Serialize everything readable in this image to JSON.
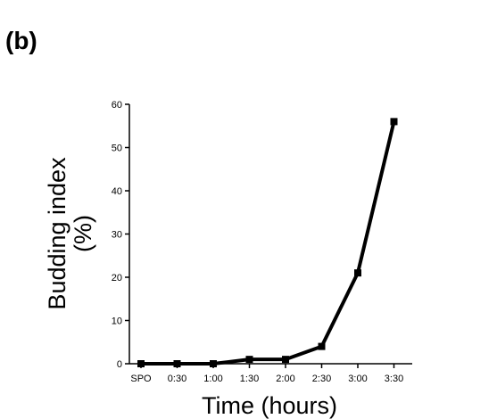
{
  "panel_label": "(b)",
  "chart_data": {
    "type": "line",
    "title": "",
    "xlabel": "Time (hours)",
    "ylabel_line1": "Budding index",
    "ylabel_line2": "(%)",
    "categories": [
      "SPO",
      "0:30",
      "1:00",
      "1:30",
      "2:00",
      "2:30",
      "3:00",
      "3:30"
    ],
    "series": [
      {
        "values": [
          0,
          0,
          0,
          1,
          1,
          4,
          21,
          56
        ]
      }
    ],
    "ylim": [
      0,
      60
    ],
    "yticks": [
      "0",
      "10",
      "20",
      "30",
      "40",
      "50",
      "60"
    ],
    "grid": false,
    "legend": "none",
    "line_color": "#000000",
    "marker": "square"
  }
}
